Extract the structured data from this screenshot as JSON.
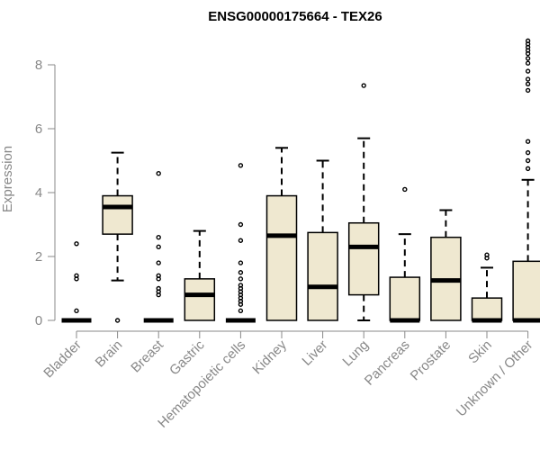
{
  "chart_data": {
    "type": "boxplot",
    "title": "ENSG00000175664 - TEX26",
    "xlabel": "",
    "ylabel": "Expression",
    "ylim": [
      0,
      8.7
    ],
    "yticks": [
      0,
      2,
      4,
      6,
      8
    ],
    "colors": {
      "box_fill": "#efe8d0",
      "box_edge": "#000000",
      "axis": "#888888",
      "text": "#888888"
    },
    "categories": [
      "Bladder",
      "Brain",
      "Breast",
      "Gastric",
      "Hematopoietic cells",
      "Kidney",
      "Liver",
      "Lung",
      "Pancreas",
      "Prostate",
      "Skin",
      "Unknown / Other"
    ],
    "boxes": [
      {
        "category": "Bladder",
        "whisker_low": 0,
        "q1": 0,
        "median": 0,
        "q3": 0,
        "whisker_high": 0,
        "outliers": [
          0.3,
          1.3,
          1.4,
          2.4
        ]
      },
      {
        "category": "Brain",
        "whisker_low": 1.25,
        "q1": 2.7,
        "median": 3.55,
        "q3": 3.9,
        "whisker_high": 5.25,
        "outliers": [
          0
        ]
      },
      {
        "category": "Breast",
        "whisker_low": 0,
        "q1": 0,
        "median": 0,
        "q3": 0,
        "whisker_high": 0,
        "outliers": [
          0.8,
          0.9,
          1.0,
          1.3,
          1.4,
          1.8,
          2.3,
          2.6,
          4.6
        ]
      },
      {
        "category": "Gastric",
        "whisker_low": 0,
        "q1": 0,
        "median": 0.8,
        "q3": 1.3,
        "whisker_high": 2.8,
        "outliers": []
      },
      {
        "category": "Hematopoietic cells",
        "whisker_low": 0,
        "q1": 0,
        "median": 0,
        "q3": 0,
        "whisker_high": 0,
        "outliers": [
          0.3,
          0.5,
          0.6,
          0.7,
          0.8,
          0.9,
          1.0,
          1.1,
          1.3,
          1.5,
          1.8,
          2.5,
          3.0,
          4.85
        ]
      },
      {
        "category": "Kidney",
        "whisker_low": 0,
        "q1": 0,
        "median": 2.65,
        "q3": 3.9,
        "whisker_high": 5.4,
        "outliers": []
      },
      {
        "category": "Liver",
        "whisker_low": 0,
        "q1": 0,
        "median": 1.05,
        "q3": 2.75,
        "whisker_high": 5.0,
        "outliers": []
      },
      {
        "category": "Lung",
        "whisker_low": 0,
        "q1": 0.8,
        "median": 2.3,
        "q3": 3.05,
        "whisker_high": 5.7,
        "outliers": [
          7.35
        ]
      },
      {
        "category": "Pancreas",
        "whisker_low": 0,
        "q1": 0,
        "median": 0,
        "q3": 1.35,
        "whisker_high": 2.7,
        "outliers": [
          4.1
        ]
      },
      {
        "category": "Prostate",
        "whisker_low": 0,
        "q1": 0,
        "median": 1.25,
        "q3": 2.6,
        "whisker_high": 3.45,
        "outliers": []
      },
      {
        "category": "Skin",
        "whisker_low": 0,
        "q1": 0,
        "median": 0,
        "q3": 0.7,
        "whisker_high": 1.65,
        "outliers": [
          1.95,
          2.05
        ]
      },
      {
        "category": "Unknown / Other",
        "whisker_low": 0,
        "q1": 0,
        "median": 0,
        "q3": 1.85,
        "whisker_high": 4.4,
        "outliers": [
          4.75,
          5.0,
          5.25,
          5.6,
          7.2,
          7.4,
          7.55,
          7.8,
          8.05,
          8.2,
          8.35,
          8.45,
          8.55,
          8.65,
          8.75
        ]
      }
    ]
  }
}
